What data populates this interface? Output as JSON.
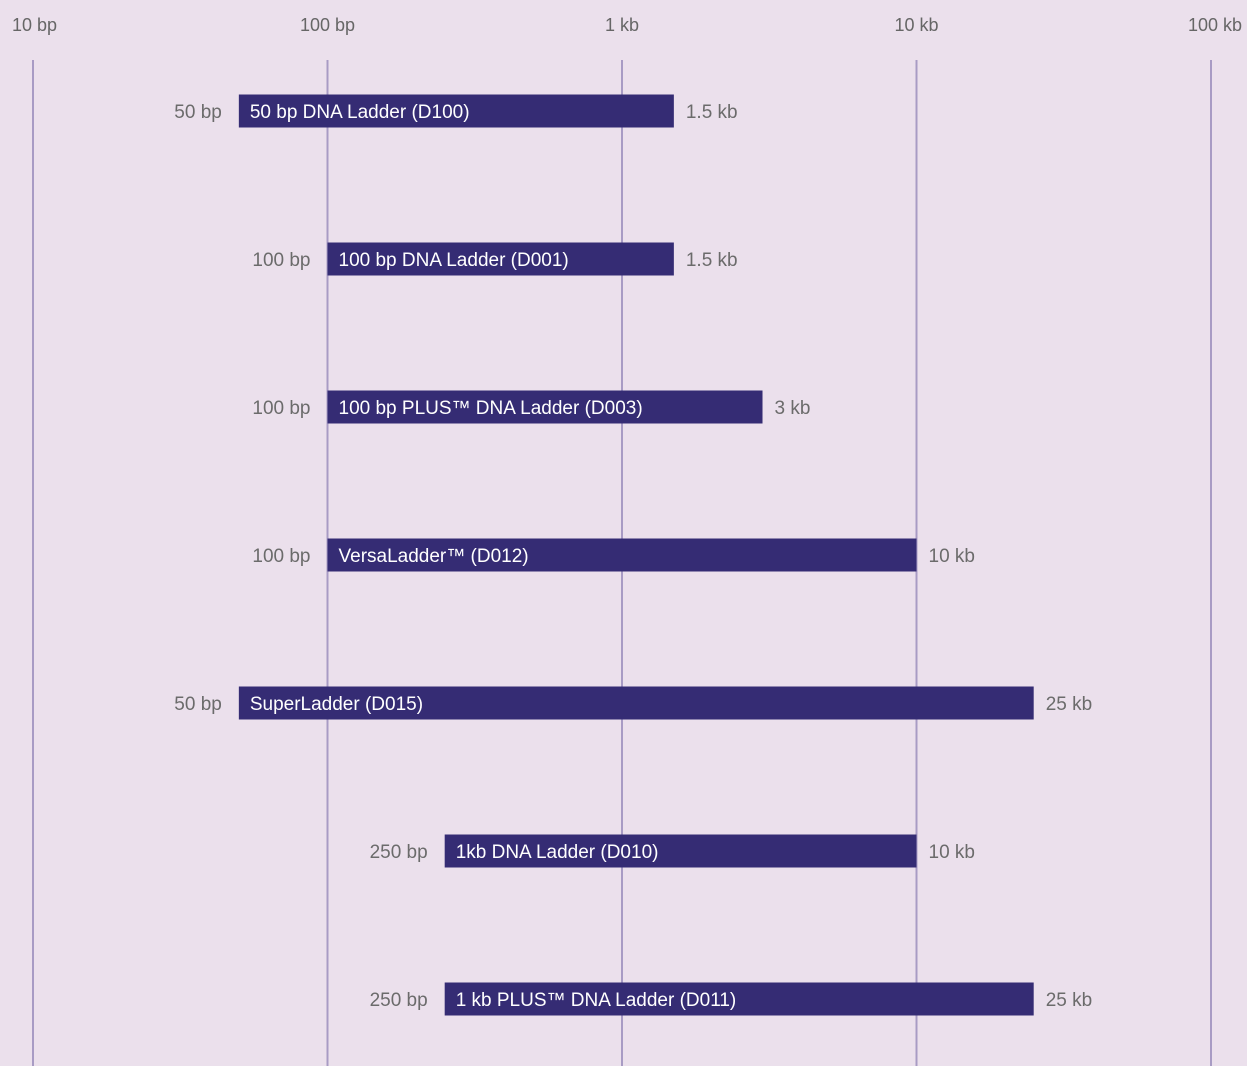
{
  "colors": {
    "background": "#ebe0ec",
    "bar": "#352c74",
    "gridline": "#a89bc4",
    "tick_text": "#666666",
    "bar_text": "#ffffff"
  },
  "chart_data": {
    "type": "bar",
    "orientation": "horizontal-range",
    "x_scale": "log",
    "xlim": [
      10,
      100000
    ],
    "x_unit": "bp",
    "grid": true,
    "x_ticks": [
      {
        "value": 10,
        "label": "10 bp"
      },
      {
        "value": 100,
        "label": "100 bp"
      },
      {
        "value": 1000,
        "label": "1 kb"
      },
      {
        "value": 10000,
        "label": "10 kb"
      },
      {
        "value": 100000,
        "label": "100 kb"
      }
    ],
    "ranges": [
      {
        "name": "50 bp DNA Ladder (D100)",
        "start": 50,
        "end": 1500,
        "start_label": "50 bp",
        "end_label": "1.5 kb"
      },
      {
        "name": "100 bp DNA Ladder (D001)",
        "start": 100,
        "end": 1500,
        "start_label": "100 bp",
        "end_label": "1.5 kb"
      },
      {
        "name": "100 bp PLUS™ DNA Ladder (D003)",
        "start": 100,
        "end": 3000,
        "start_label": "100 bp",
        "end_label": "3 kb"
      },
      {
        "name": "VersaLadder™ (D012)",
        "start": 100,
        "end": 10000,
        "start_label": "100 bp",
        "end_label": "10 kb"
      },
      {
        "name": "SuperLadder (D015)",
        "start": 50,
        "end": 25000,
        "start_label": "50 bp",
        "end_label": "25 kb"
      },
      {
        "name": "1kb DNA Ladder (D010)",
        "start": 250,
        "end": 10000,
        "start_label": "250 bp",
        "end_label": "10 kb"
      },
      {
        "name": "1 kb PLUS™ DNA Ladder (D011)",
        "start": 250,
        "end": 25000,
        "start_label": "250 bp",
        "end_label": "25 kb"
      }
    ]
  }
}
